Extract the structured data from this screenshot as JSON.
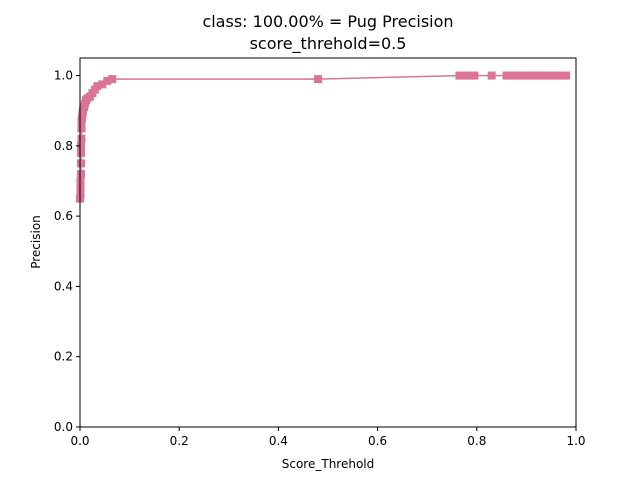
{
  "chart_data": {
    "type": "line",
    "title": "class: 100.00% = Pug Precision",
    "subtitle": "score_threhold=0.5",
    "xlabel": "Score_Threhold",
    "ylabel": "Precision",
    "xlim": [
      0,
      1.0
    ],
    "ylim": [
      0,
      1.05
    ],
    "xticks": [
      "0.0",
      "0.2",
      "0.4",
      "0.6",
      "0.8",
      "1.0"
    ],
    "yticks": [
      "0.0",
      "0.2",
      "0.4",
      "0.6",
      "0.8",
      "1.0"
    ],
    "grid": false,
    "series": [
      {
        "color": "#dc7496",
        "marker": "square",
        "x": [
          0.0,
          0.001,
          0.001,
          0.001,
          0.001,
          0.002,
          0.002,
          0.002,
          0.002,
          0.003,
          0.003,
          0.003,
          0.004,
          0.005,
          0.006,
          0.008,
          0.01,
          0.012,
          0.015,
          0.02,
          0.025,
          0.03,
          0.035,
          0.045,
          0.055,
          0.065,
          0.48,
          0.765,
          0.775,
          0.785,
          0.795,
          0.83,
          0.86,
          0.87,
          0.88,
          0.89,
          0.9,
          0.91,
          0.92,
          0.93,
          0.94,
          0.95,
          0.96,
          0.97,
          0.98
        ],
        "y": [
          0.65,
          0.66,
          0.67,
          0.68,
          0.7,
          0.72,
          0.75,
          0.78,
          0.8,
          0.82,
          0.85,
          0.87,
          0.88,
          0.89,
          0.9,
          0.91,
          0.92,
          0.93,
          0.935,
          0.94,
          0.95,
          0.96,
          0.97,
          0.975,
          0.985,
          0.99,
          0.99,
          1.0,
          1.0,
          1.0,
          1.0,
          1.0,
          1.0,
          1.0,
          1.0,
          1.0,
          1.0,
          1.0,
          1.0,
          1.0,
          1.0,
          1.0,
          1.0,
          1.0,
          1.0
        ]
      }
    ]
  }
}
